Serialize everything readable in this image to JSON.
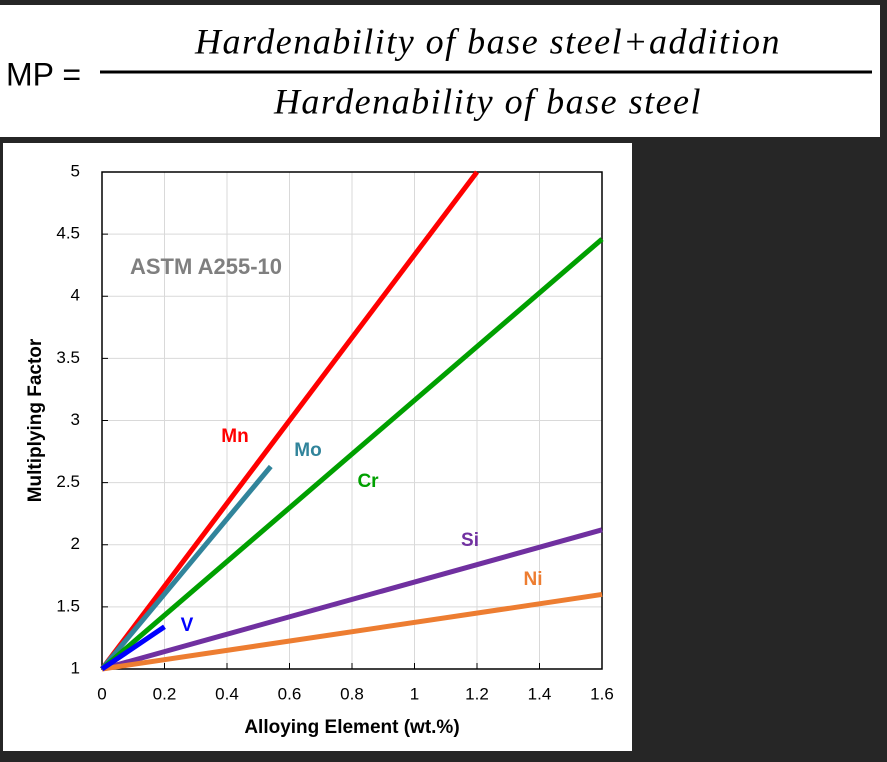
{
  "formula": {
    "lhs": "MP =",
    "numerator": "Hardenability of base steel+addition",
    "denominator": "Hardenability of base steel"
  },
  "chart_data": {
    "type": "line",
    "annotation": "ASTM A255-10",
    "x_label": "Alloying Element (wt.%)",
    "y_label": "Multiplying Factor",
    "xlim": [
      0,
      1.6
    ],
    "ylim": [
      1,
      5
    ],
    "xticks": [
      0,
      0.2,
      0.4,
      0.6,
      0.8,
      1,
      1.2,
      1.4,
      1.6
    ],
    "yticks": [
      1,
      1.5,
      2,
      2.5,
      3,
      3.5,
      4,
      4.5,
      5
    ],
    "grid": true,
    "series": [
      {
        "name": "Mn",
        "color": "#ff0000",
        "x": [
          0,
          1.2
        ],
        "values": [
          1,
          5
        ]
      },
      {
        "name": "Mo",
        "color": "#31849b",
        "x": [
          0,
          0.54
        ],
        "values": [
          1,
          2.63
        ]
      },
      {
        "name": "Cr",
        "color": "#00a000",
        "x": [
          0,
          1.6
        ],
        "values": [
          1,
          4.46
        ]
      },
      {
        "name": "Si",
        "color": "#7030a0",
        "x": [
          0,
          1.6
        ],
        "values": [
          1,
          2.12
        ]
      },
      {
        "name": "Ni",
        "color": "#ed7d31",
        "x": [
          0,
          1.6
        ],
        "values": [
          1,
          1.6
        ]
      },
      {
        "name": "V",
        "color": "#0000ff",
        "x": [
          0,
          0.2
        ],
        "values": [
          1,
          1.34
        ]
      }
    ]
  }
}
